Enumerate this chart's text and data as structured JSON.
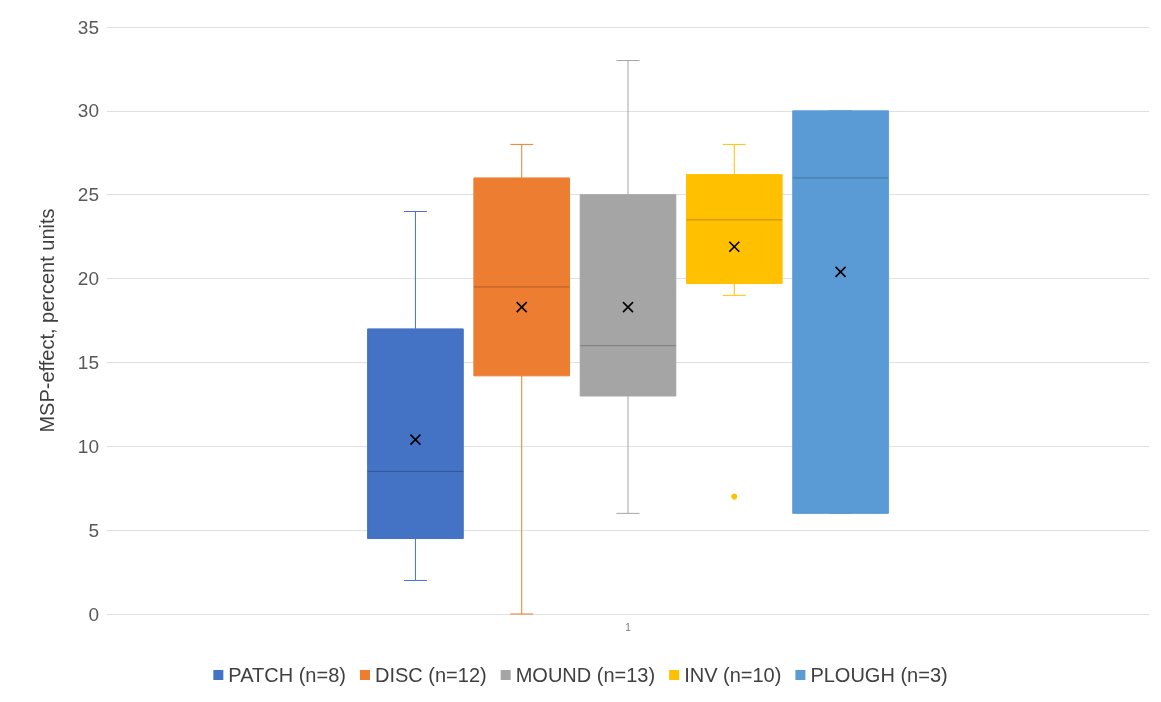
{
  "chart_data": {
    "type": "box",
    "ylabel": "MSP-effect, percent units",
    "categories": [
      "1"
    ],
    "ylim": [
      0,
      35
    ],
    "yticks": [
      0,
      5,
      10,
      15,
      20,
      25,
      30,
      35
    ],
    "grid": "y",
    "legend": "bottom",
    "marker": "cross",
    "series": [
      {
        "name": "PATCH (n=8)",
        "color": "#4472c4",
        "boxes": [
          {
            "low": 2,
            "q1": 4.5,
            "median": 8.5,
            "q3": 17,
            "high": 24,
            "mean": 10.4
          }
        ]
      },
      {
        "name": "DISC (n=12)",
        "color": "#ed7d31",
        "boxes": [
          {
            "low": 0,
            "q1": 14.2,
            "median": 19.5,
            "q3": 26,
            "high": 28,
            "mean": 18.3
          }
        ]
      },
      {
        "name": "MOUND (n=13)",
        "color": "#a5a5a5",
        "boxes": [
          {
            "low": 6,
            "q1": 13,
            "median": 16,
            "q3": 25,
            "high": 33,
            "mean": 18.3
          }
        ]
      },
      {
        "name": "INV (n=10)",
        "color": "#ffc000",
        "boxes": [
          {
            "low": 19,
            "q1": 19.7,
            "median": 23.5,
            "q3": 26.2,
            "high": 28,
            "mean": 21.9,
            "outliers": [
              7
            ]
          }
        ]
      },
      {
        "name": "PLOUGH (n=3)",
        "color": "#5b9bd5",
        "boxes": [
          {
            "low": 6,
            "q1": 6,
            "median": 26,
            "q3": 30,
            "high": 30,
            "mean": 20.4
          }
        ]
      }
    ]
  }
}
